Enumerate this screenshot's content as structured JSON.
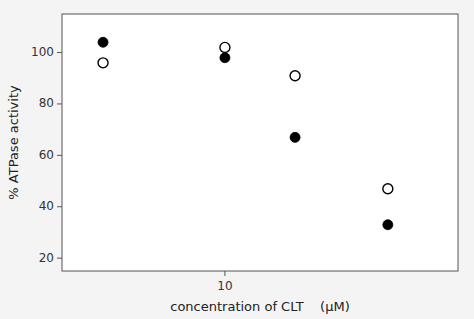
{
  "chart_data": {
    "type": "scatter",
    "xlabel": "concentration of CLT    (μM)",
    "ylabel": "% ATPase activity",
    "x": [
      3,
      10,
      20,
      50
    ],
    "series": [
      {
        "color": "#000000",
        "marker": "circle",
        "values": [
          104,
          98,
          67,
          33
        ]
      },
      {
        "color": "#000000",
        "marker": "circle-open",
        "values": [
          96,
          102,
          91,
          47
        ]
      }
    ],
    "xlim": [
      2,
      100
    ],
    "ylim": [
      15,
      115
    ],
    "xticks": [
      10
    ],
    "yticks": [
      20,
      40,
      60,
      80,
      100
    ],
    "log": "x",
    "grid": false
  }
}
